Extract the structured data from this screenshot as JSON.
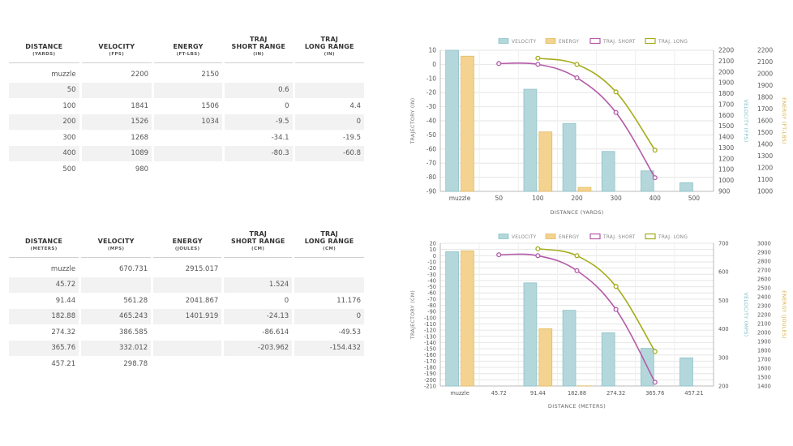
{
  "tables": [
    {
      "headers": [
        {
          "label": "DISTANCE",
          "label2": "",
          "unit": "(YARDS)"
        },
        {
          "label": "VELOCITY",
          "label2": "",
          "unit": "(FPS)"
        },
        {
          "label": "ENERGY",
          "label2": "",
          "unit": "(FT-LBS)"
        },
        {
          "label": "TRAJ",
          "label2": "SHORT RANGE",
          "unit": "(IN)"
        },
        {
          "label": "TRAJ",
          "label2": "LONG RANGE",
          "unit": "(IN)"
        }
      ],
      "rows": [
        [
          "muzzle",
          "2200",
          "2150",
          "",
          ""
        ],
        [
          "50",
          "",
          "",
          "0.6",
          ""
        ],
        [
          "100",
          "1841",
          "1506",
          "0",
          "4.4"
        ],
        [
          "200",
          "1526",
          "1034",
          "-9.5",
          "0"
        ],
        [
          "300",
          "1268",
          "",
          "-34.1",
          "-19.5"
        ],
        [
          "400",
          "1089",
          "",
          "-80.3",
          "-60.8"
        ],
        [
          "500",
          "980",
          "",
          "",
          ""
        ]
      ]
    },
    {
      "headers": [
        {
          "label": "DISTANCE",
          "label2": "",
          "unit": "(METERS)"
        },
        {
          "label": "VELOCITY",
          "label2": "",
          "unit": "(MPS)"
        },
        {
          "label": "ENERGY",
          "label2": "",
          "unit": "(JOULES)"
        },
        {
          "label": "TRAJ",
          "label2": "SHORT RANGE",
          "unit": "(CM)"
        },
        {
          "label": "TRAJ",
          "label2": "LONG RANGE",
          "unit": "(CM)"
        }
      ],
      "rows": [
        [
          "muzzle",
          "670.731",
          "2915.017",
          "",
          ""
        ],
        [
          "45.72",
          "",
          "",
          "1.524",
          ""
        ],
        [
          "91.44",
          "561.28",
          "2041.867",
          "0",
          "11.176"
        ],
        [
          "182.88",
          "465.243",
          "1401.919",
          "-24.13",
          "0"
        ],
        [
          "274.32",
          "386.585",
          "",
          "-86.614",
          "-49.53"
        ],
        [
          "365.76",
          "332.012",
          "",
          "-203.962",
          "-154.432"
        ],
        [
          "457.21",
          "298.78",
          "",
          "",
          ""
        ]
      ]
    }
  ],
  "chart_data": [
    {
      "type": "bar",
      "categories": [
        "muzzle",
        "50",
        "100",
        "200",
        "300",
        "400",
        "500"
      ],
      "xlabel": "DISTANCE (YARDS)",
      "legend": [
        "VELOCITY",
        "ENERGY",
        "TRAJ. SHORT",
        "TRAJ. LONG"
      ],
      "legend_position": "top",
      "traj_axis": {
        "label": "TRAJECTORY (IN)",
        "min": -90,
        "max": 10,
        "step": 10
      },
      "vel_axis": {
        "label": "VELOCITY (FPS)",
        "min": 900,
        "max": 2200,
        "step": 100
      },
      "energy_axis": {
        "label": "ENERGY (FT-LBS)",
        "min": 1000,
        "max": 2200,
        "step": 100
      },
      "velocity": [
        2200,
        null,
        1841,
        1526,
        1268,
        1089,
        980
      ],
      "energy": [
        2150,
        null,
        1506,
        1034,
        null,
        null,
        null
      ],
      "traj_short": [
        null,
        0.6,
        0,
        -9.5,
        -34.1,
        -80.3,
        null
      ],
      "traj_long": [
        null,
        null,
        4.4,
        0,
        -19.5,
        -60.8,
        null
      ],
      "colors": {
        "velocity": "#b3d7db",
        "velocity_stroke": "#8fc3c8",
        "energy": "#f3d38f",
        "energy_stroke": "#e3bb62",
        "short": "#b45aa8",
        "long": "#a5ac19",
        "vel_axis": "#7fbfc6",
        "energy_axis": "#d6b24e"
      }
    },
    {
      "type": "bar",
      "categories": [
        "muzzle",
        "45.72",
        "91.44",
        "182.88",
        "274.32",
        "365.76",
        "457.21"
      ],
      "xlabel": "DISTANCE (METERS)",
      "legend": [
        "VELOCITY",
        "ENERGY",
        "TRAJ. SHORT",
        "TRAJ. LONG"
      ],
      "legend_position": "top",
      "traj_axis": {
        "label": "TRAJECTORY (CM)",
        "min": -210,
        "max": 20,
        "step": 10
      },
      "vel_axis": {
        "label": "VELOCITY (MPS)",
        "min": 200,
        "max": 700,
        "step": 100
      },
      "energy_axis": {
        "label": "ENERGY (JOULES)",
        "min": 1400,
        "max": 3000,
        "step": 100
      },
      "velocity": [
        670.731,
        null,
        561.28,
        465.243,
        386.585,
        332.012,
        298.78
      ],
      "energy": [
        2915.017,
        null,
        2041.867,
        1401.919,
        null,
        null,
        null
      ],
      "traj_short": [
        null,
        1.524,
        0,
        -24.13,
        -86.614,
        -203.962,
        null
      ],
      "traj_long": [
        null,
        null,
        11.176,
        0,
        -49.53,
        -154.432,
        null
      ],
      "colors": {
        "velocity": "#b3d7db",
        "velocity_stroke": "#8fc3c8",
        "energy": "#f3d38f",
        "energy_stroke": "#e3bb62",
        "short": "#b45aa8",
        "long": "#a5ac19",
        "vel_axis": "#7fbfc6",
        "energy_axis": "#d6b24e"
      }
    }
  ]
}
